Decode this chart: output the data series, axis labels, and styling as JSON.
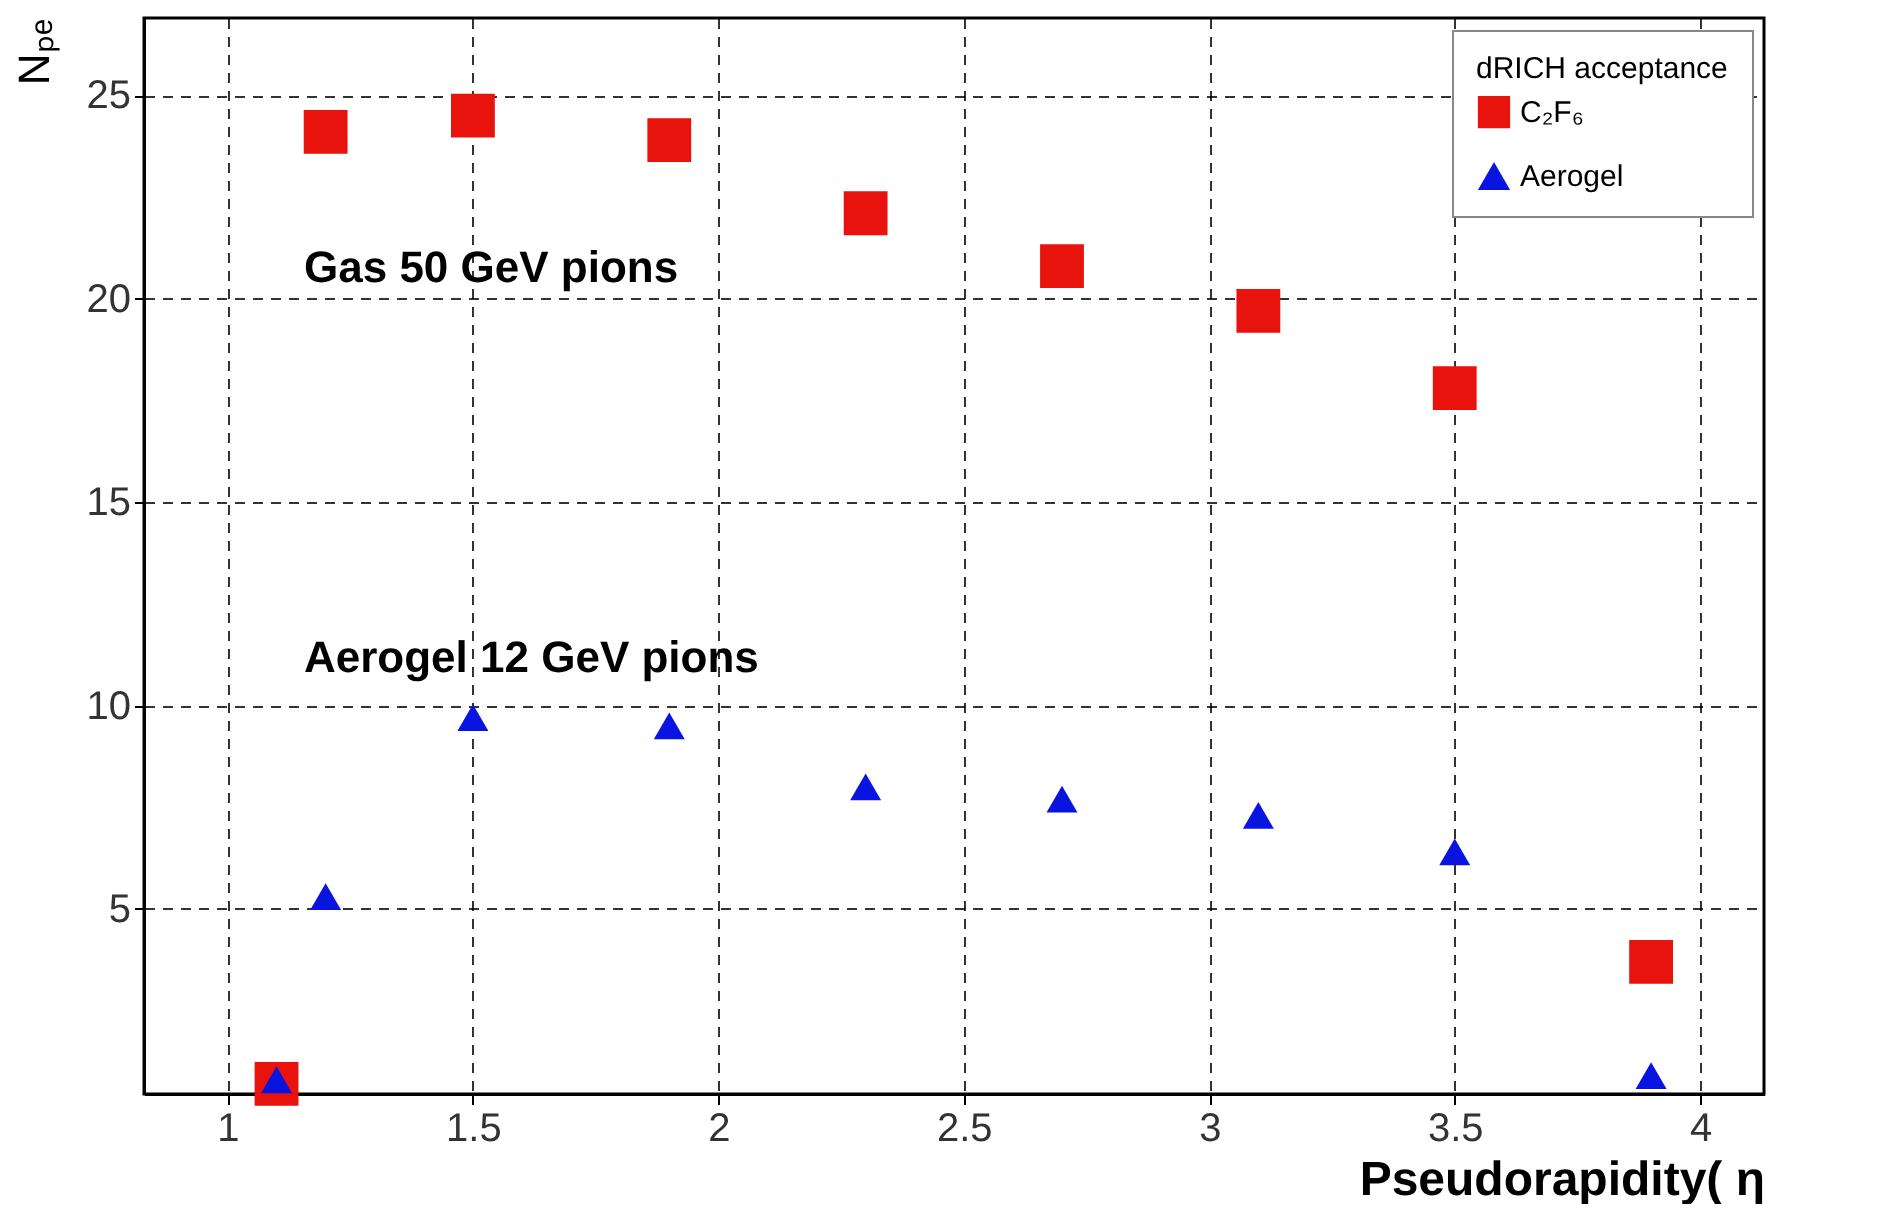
{
  "chart_data": {
    "type": "scatter",
    "xlabel": "Pseudorapidity( η",
    "ylabel": "Nₚₑ",
    "legend_title": "dRICH acceptance",
    "x": [
      1.1,
      1.2,
      1.5,
      1.9,
      2.3,
      2.7,
      3.1,
      3.5,
      3.9
    ],
    "series": [
      {
        "name": "C₂F₆",
        "color": "#e8130d",
        "marker": "square",
        "values": [
          0.7,
          24.1,
          24.5,
          23.9,
          22.1,
          20.8,
          19.7,
          17.8,
          3.7
        ]
      },
      {
        "name": "Aerogel",
        "color": "#0a14e0",
        "marker": "triangle",
        "values": [
          0.8,
          5.3,
          9.7,
          9.5,
          8.0,
          7.7,
          7.3,
          6.4,
          0.9
        ]
      }
    ],
    "annotations": [
      "Gas 50 GeV pions",
      "Aerogel 12 GeV pions"
    ],
    "xlim": [
      0.83,
      4.13
    ],
    "ylim": [
      0.45,
      26.9
    ],
    "xticks": [
      1,
      1.5,
      2,
      2.5,
      3,
      3.5,
      4
    ],
    "yticks": [
      5,
      10,
      15,
      20,
      25
    ],
    "grid": true,
    "legend": "top right"
  }
}
